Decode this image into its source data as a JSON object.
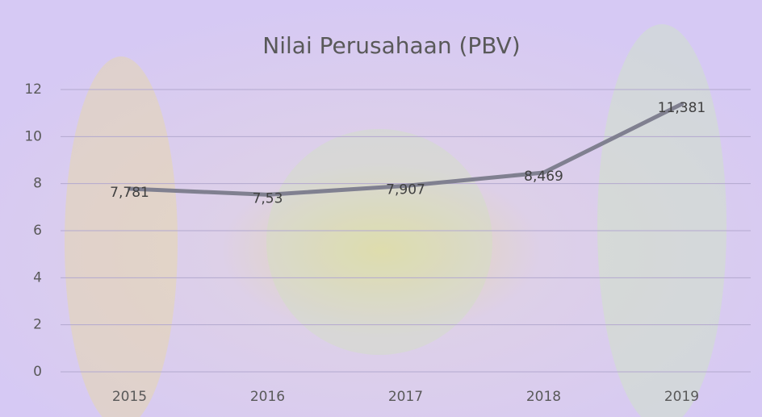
{
  "chart_data": {
    "type": "line",
    "title": "Nilai Perusahaan (PBV)",
    "categories": [
      "2015",
      "2016",
      "2017",
      "2018",
      "2019"
    ],
    "values": [
      7.781,
      7.53,
      7.907,
      8.469,
      11.381
    ],
    "value_labels": [
      "7,781",
      "7,53",
      "7,907",
      "8,469",
      "11,381"
    ],
    "color": "#808090",
    "ylim": [
      0,
      12
    ],
    "yticks": [
      0,
      2,
      4,
      6,
      8,
      10,
      12
    ],
    "grid": true
  }
}
